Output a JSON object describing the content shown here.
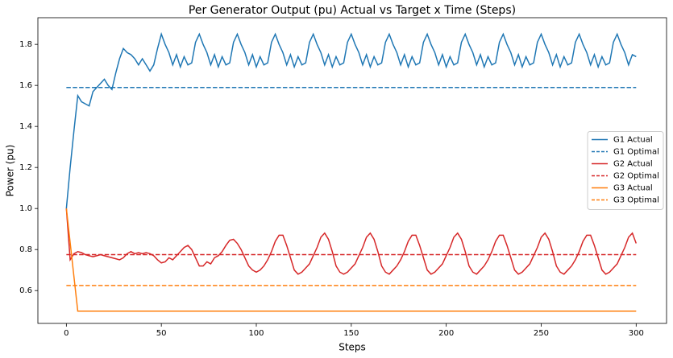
{
  "chart_data": {
    "type": "line",
    "title": "Per Generator Output (pu) Actual vs Target x Time (Steps)",
    "x_label": "Steps",
    "y_label": "Power (pu)",
    "x": [
      0,
      2,
      4,
      6,
      8,
      10,
      12,
      14,
      16,
      18,
      20,
      22,
      24,
      26,
      28,
      30,
      32,
      34,
      36,
      38,
      40,
      42,
      44,
      46,
      48,
      50,
      52,
      54,
      56,
      58,
      60,
      62,
      64,
      66,
      68,
      70,
      72,
      74,
      76,
      78,
      80,
      82,
      84,
      86,
      88,
      90,
      92,
      94,
      96,
      98,
      100,
      102,
      104,
      106,
      108,
      110,
      112,
      114,
      116,
      118,
      120,
      122,
      124,
      126,
      128,
      130,
      132,
      134,
      136,
      138,
      140,
      142,
      144,
      146,
      148,
      150,
      152,
      154,
      156,
      158,
      160,
      162,
      164,
      166,
      168,
      170,
      172,
      174,
      176,
      178,
      180,
      182,
      184,
      186,
      188,
      190,
      192,
      194,
      196,
      198,
      200,
      202,
      204,
      206,
      208,
      210,
      212,
      214,
      216,
      218,
      220,
      222,
      224,
      226,
      228,
      230,
      232,
      234,
      236,
      238,
      240,
      242,
      244,
      246,
      248,
      250,
      252,
      254,
      256,
      258,
      260,
      262,
      264,
      266,
      268,
      270,
      272,
      274,
      276,
      278,
      280,
      282,
      284,
      286,
      288,
      290,
      292,
      294,
      296,
      298,
      300
    ],
    "series": [
      {
        "name": "G1 Actual",
        "color": "#1f77b4",
        "style": "solid",
        "values": [
          1.0,
          1.2,
          1.38,
          1.55,
          1.52,
          1.51,
          1.5,
          1.57,
          1.59,
          1.61,
          1.63,
          1.6,
          1.58,
          1.66,
          1.73,
          1.78,
          1.76,
          1.75,
          1.73,
          1.7,
          1.73,
          1.7,
          1.67,
          1.7,
          1.78,
          1.85,
          1.8,
          1.76,
          1.7,
          1.75,
          1.69,
          1.74,
          1.7,
          1.71,
          1.81,
          1.85,
          1.8,
          1.76,
          1.7,
          1.75,
          1.69,
          1.74,
          1.7,
          1.71,
          1.81,
          1.85,
          1.8,
          1.76,
          1.7,
          1.75,
          1.69,
          1.74,
          1.7,
          1.71,
          1.81,
          1.85,
          1.8,
          1.76,
          1.7,
          1.75,
          1.69,
          1.74,
          1.7,
          1.71,
          1.81,
          1.85,
          1.8,
          1.76,
          1.7,
          1.75,
          1.69,
          1.74,
          1.7,
          1.71,
          1.81,
          1.85,
          1.8,
          1.76,
          1.7,
          1.75,
          1.69,
          1.74,
          1.7,
          1.71,
          1.81,
          1.85,
          1.8,
          1.76,
          1.7,
          1.75,
          1.69,
          1.74,
          1.7,
          1.71,
          1.81,
          1.85,
          1.8,
          1.76,
          1.7,
          1.75,
          1.69,
          1.74,
          1.7,
          1.71,
          1.81,
          1.85,
          1.8,
          1.76,
          1.7,
          1.75,
          1.69,
          1.74,
          1.7,
          1.71,
          1.81,
          1.85,
          1.8,
          1.76,
          1.7,
          1.75,
          1.69,
          1.74,
          1.7,
          1.71,
          1.81,
          1.85,
          1.8,
          1.76,
          1.7,
          1.75,
          1.69,
          1.74,
          1.7,
          1.71,
          1.81,
          1.85,
          1.8,
          1.76,
          1.7,
          1.75,
          1.69,
          1.74,
          1.7,
          1.71,
          1.81,
          1.85,
          1.8,
          1.76,
          1.7,
          1.75,
          1.74
        ]
      },
      {
        "name": "G1 Optimal",
        "color": "#1f77b4",
        "style": "dashed",
        "x": [
          0,
          300
        ],
        "values": [
          1.59,
          1.59
        ]
      },
      {
        "name": "G2 Actual",
        "color": "#d62728",
        "style": "solid",
        "values": [
          1.0,
          0.75,
          0.78,
          0.79,
          0.785,
          0.775,
          0.77,
          0.765,
          0.77,
          0.775,
          0.77,
          0.765,
          0.76,
          0.755,
          0.75,
          0.76,
          0.78,
          0.79,
          0.78,
          0.785,
          0.78,
          0.785,
          0.78,
          0.77,
          0.75,
          0.735,
          0.74,
          0.76,
          0.75,
          0.77,
          0.79,
          0.81,
          0.82,
          0.8,
          0.76,
          0.72,
          0.72,
          0.74,
          0.73,
          0.76,
          0.77,
          0.79,
          0.82,
          0.845,
          0.85,
          0.83,
          0.8,
          0.76,
          0.72,
          0.7,
          0.69,
          0.7,
          0.72,
          0.75,
          0.79,
          0.84,
          0.87,
          0.87,
          0.82,
          0.76,
          0.7,
          0.68,
          0.69,
          0.71,
          0.73,
          0.77,
          0.81,
          0.86,
          0.88,
          0.85,
          0.79,
          0.72,
          0.69,
          0.68,
          0.69,
          0.71,
          0.73,
          0.77,
          0.81,
          0.86,
          0.88,
          0.85,
          0.79,
          0.72,
          0.69,
          0.68,
          0.7,
          0.72,
          0.75,
          0.79,
          0.84,
          0.87,
          0.87,
          0.82,
          0.76,
          0.7,
          0.68,
          0.69,
          0.71,
          0.73,
          0.77,
          0.81,
          0.86,
          0.88,
          0.85,
          0.79,
          0.72,
          0.69,
          0.68,
          0.7,
          0.72,
          0.75,
          0.79,
          0.84,
          0.87,
          0.87,
          0.82,
          0.76,
          0.7,
          0.68,
          0.69,
          0.71,
          0.73,
          0.77,
          0.81,
          0.86,
          0.88,
          0.85,
          0.79,
          0.72,
          0.69,
          0.68,
          0.7,
          0.72,
          0.75,
          0.79,
          0.84,
          0.87,
          0.87,
          0.82,
          0.76,
          0.7,
          0.68,
          0.69,
          0.71,
          0.73,
          0.77,
          0.81,
          0.86,
          0.88,
          0.83
        ]
      },
      {
        "name": "G2 Optimal",
        "color": "#d62728",
        "style": "dashed",
        "x": [
          0,
          300
        ],
        "values": [
          0.775,
          0.775
        ]
      },
      {
        "name": "G3 Actual",
        "color": "#ff7f0e",
        "style": "solid",
        "x": [
          0,
          6,
          300
        ],
        "values": [
          1.0,
          0.5,
          0.5
        ]
      },
      {
        "name": "G3 Optimal",
        "color": "#ff7f0e",
        "style": "dashed",
        "x": [
          0,
          300
        ],
        "values": [
          0.625,
          0.625
        ]
      }
    ],
    "xlim": [
      -15,
      316
    ],
    "xticks": [
      0,
      50,
      100,
      150,
      200,
      250,
      300
    ],
    "ylim": [
      0.44,
      1.93
    ],
    "yticks": [
      0.6,
      0.8,
      {
        "value": 1,
        "label": "1.0"
      },
      1.2,
      1.4,
      1.6,
      1.8
    ],
    "legend": "center right"
  }
}
